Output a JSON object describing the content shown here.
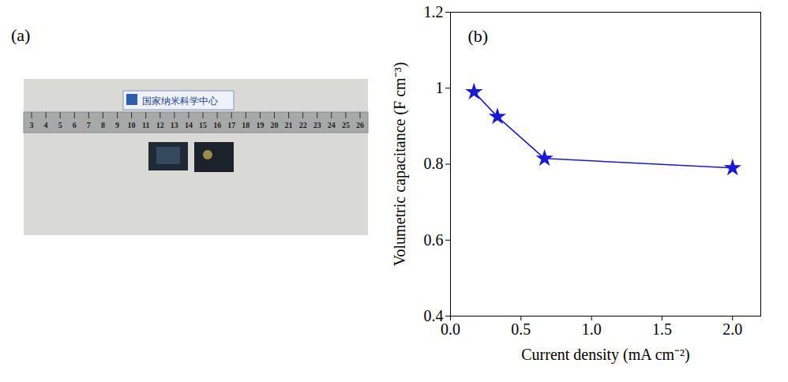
{
  "chart_data": {
    "type": "line",
    "panel_label": "(b)",
    "x_label": "Current density (mA cm⁻²)",
    "y_label": "Volumetric capacitance (F cm⁻³)",
    "x": [
      0.167,
      0.333,
      0.667,
      2.0
    ],
    "values": [
      0.99,
      0.925,
      0.815,
      0.79
    ],
    "color": "#1a1ad6",
    "marker": "star",
    "line_style": "solid",
    "grid": false,
    "xlim": [
      0,
      2.2
    ],
    "ylim": [
      0.4,
      1.2
    ],
    "xticks": [
      {
        "value": 0,
        "label": "0.0"
      },
      {
        "value": 0.5,
        "label": "0.5"
      },
      {
        "value": 1,
        "label": "1.0"
      },
      {
        "value": 1.5,
        "label": "1.5"
      },
      {
        "value": 2,
        "label": "2.0"
      }
    ],
    "yticks": [
      0.4,
      0.6,
      0.8,
      1,
      1.2
    ]
  },
  "photo": {
    "panel_label": "(a)",
    "sign_text": "国家纳米科学中心",
    "ruler_labels": [
      3,
      4,
      5,
      6,
      7,
      8,
      9,
      10,
      11,
      12,
      13,
      14,
      15,
      16,
      17,
      18,
      19,
      20,
      21,
      22,
      23,
      24,
      25,
      26
    ]
  }
}
